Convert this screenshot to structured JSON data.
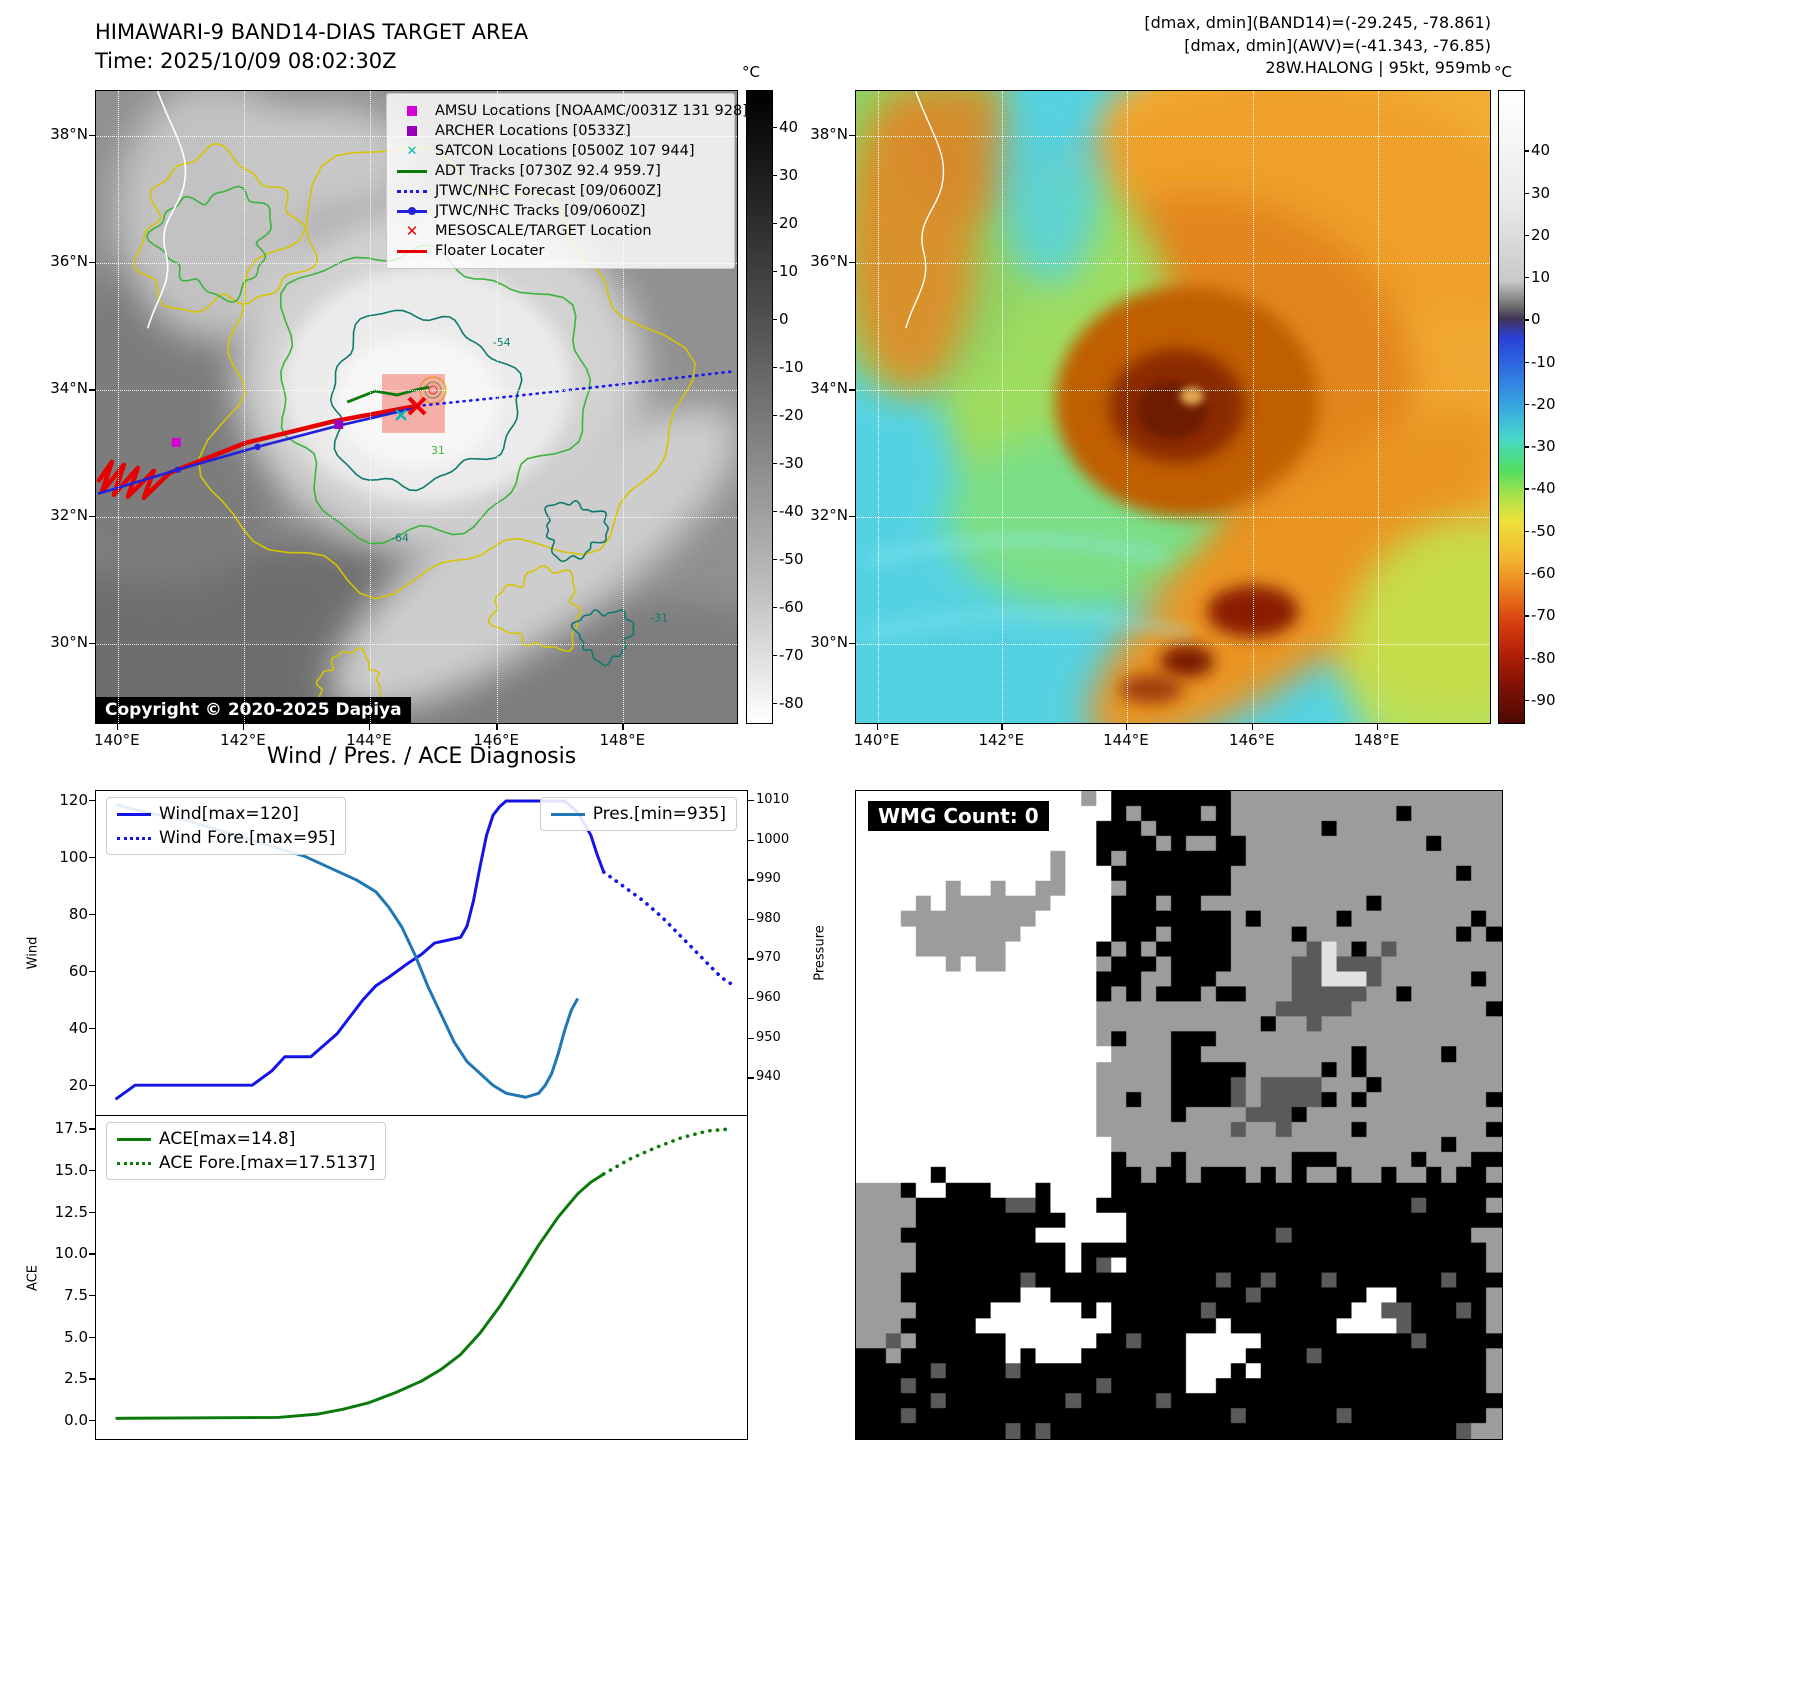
{
  "top_left": {
    "title_line1": "HIMAWARI-9 BAND14-DIAS TARGET AREA",
    "title_line2": "Time: 2025/10/09 08:02:30Z",
    "copyright": "Copyright © 2020-2025 Dapiya",
    "legend": [
      {
        "label": "AMSU Locations [NOAAMC/0031Z 131 928]",
        "marker": "square",
        "color": "#d400d4"
      },
      {
        "label": "ARCHER Locations [0533Z]",
        "marker": "square",
        "color": "#9900bb"
      },
      {
        "label": "SATCON Locations [0500Z 107 944]",
        "marker": "x",
        "color": "#00b8b8"
      },
      {
        "label": "ADT Tracks [0730Z 92.4 959.7]",
        "marker": "line",
        "color": "#0a7a0a"
      },
      {
        "label": "JTWC/NHC Forecast [09/0600Z]",
        "marker": "dotted",
        "color": "#1a1aee"
      },
      {
        "label": "JTWC/NHC Tracks [09/0600Z]",
        "marker": "line-dot",
        "color": "#2222dd"
      },
      {
        "label": "MESOSCALE/TARGET Location",
        "marker": "x-bold",
        "color": "#ee0000"
      },
      {
        "label": "Floater Locater",
        "marker": "line",
        "color": "#e60000"
      }
    ],
    "lat_ticks": [
      "38°N",
      "36°N",
      "34°N",
      "32°N",
      "30°N"
    ],
    "lon_ticks": [
      "140°E",
      "142°E",
      "144°E",
      "146°E",
      "148°E"
    ],
    "colorbar": {
      "unit": "°C",
      "ticks": [
        40,
        30,
        20,
        10,
        0,
        -10,
        -20,
        -30,
        -40,
        -50,
        -60,
        -70,
        -80
      ],
      "gradient": [
        "#000000 0%",
        "#2b2b2b 20%",
        "#555555 38%",
        "#898989 58%",
        "#bcbcbc 78%",
        "#ffffff 100%"
      ]
    }
  },
  "top_right": {
    "title_line1": "[dmax, dmin](BAND14)=(-29.245, -78.861)",
    "title_line2": "[dmax, dmin](AWV)=(-41.343, -76.85)",
    "title_line3": "28W.HALONG | 95kt, 959mb",
    "lat_ticks": [
      "38°N",
      "36°N",
      "34°N",
      "32°N",
      "30°N"
    ],
    "lon_ticks": [
      "140°E",
      "142°E",
      "144°E",
      "146°E",
      "148°E"
    ],
    "colorbar": {
      "unit": "°C",
      "ticks": [
        40,
        30,
        20,
        10,
        0,
        -10,
        -20,
        -30,
        -40,
        -50,
        -60,
        -70,
        -80,
        -90
      ],
      "gradient": [
        "#ffffff 0%",
        "#e9e9e9 18%",
        "#c9c9c9 30%",
        "#6f6f6f 34%",
        "#413355 36%",
        "#2b3fd8 39%",
        "#2e6fe0 44%",
        "#38a8e0 50%",
        "#45d8c8 55%",
        "#52de62 60%",
        "#a8e24a 64%",
        "#eee23c 68%",
        "#f2b52e 74%",
        "#ea7c1c 79%",
        "#d84010 84%",
        "#b22008 89%",
        "#801204 94%",
        "#4c0a02 100%"
      ]
    }
  },
  "bottom_right": {
    "label": "WMG Count: 0"
  },
  "chart_data": [
    {
      "id": "wind-pressure",
      "type": "line",
      "title": "Wind / Pres. / ACE Diagnosis",
      "ylabel_left": "Wind",
      "ylabel_right": "Pressure",
      "ylim_left": [
        9.5,
        123.5
      ],
      "ylim_right": [
        930.5,
        1012.5
      ],
      "yticks_left": [
        20,
        40,
        60,
        80,
        100,
        120
      ],
      "yticks_right": [
        940,
        950,
        960,
        970,
        980,
        990,
        1000,
        1010
      ],
      "xlim": [
        0,
        100
      ],
      "legend_boxes": [
        {
          "pos": "top-left",
          "items": [
            0,
            1
          ]
        },
        {
          "pos": "top-right",
          "items": [
            2
          ]
        }
      ],
      "series": [
        {
          "name": "Wind[max=120]",
          "axis": "left",
          "style": "solid",
          "color": "#1414e6",
          "width": 3,
          "points": [
            [
              3,
              15
            ],
            [
              6,
              20
            ],
            [
              24,
              20
            ],
            [
              27,
              25
            ],
            [
              29,
              30
            ],
            [
              33,
              30
            ],
            [
              35,
              34
            ],
            [
              37,
              38
            ],
            [
              39,
              44
            ],
            [
              41,
              50
            ],
            [
              43,
              55
            ],
            [
              45,
              58
            ],
            [
              48,
              63
            ],
            [
              50,
              66
            ],
            [
              52,
              70
            ],
            [
              54,
              71
            ],
            [
              56,
              72
            ],
            [
              57,
              76
            ],
            [
              58,
              85
            ],
            [
              59,
              97
            ],
            [
              60,
              108
            ],
            [
              61,
              115
            ],
            [
              62,
              118
            ],
            [
              63,
              120
            ],
            [
              72,
              120
            ],
            [
              74,
              116
            ],
            [
              76,
              108
            ],
            [
              77,
              101
            ],
            [
              78,
              95
            ]
          ]
        },
        {
          "name": "Wind Fore.[max=95]",
          "axis": "left",
          "style": "dotted",
          "color": "#1414e6",
          "width": 3,
          "points": [
            [
              78,
              95
            ],
            [
              81,
              90
            ],
            [
              84,
              85
            ],
            [
              87,
              79
            ],
            [
              90,
              72
            ],
            [
              93,
              65
            ],
            [
              96,
              58
            ],
            [
              98,
              55
            ]
          ]
        },
        {
          "name": "Pres.[min=935]",
          "axis": "right",
          "style": "solid",
          "color": "#1f77b4",
          "width": 3,
          "points": [
            [
              3,
              1009
            ],
            [
              8,
              1007
            ],
            [
              14,
              1005
            ],
            [
              20,
              1002
            ],
            [
              26,
              999
            ],
            [
              32,
              996
            ],
            [
              36,
              993
            ],
            [
              40,
              990
            ],
            [
              43,
              987
            ],
            [
              45,
              983
            ],
            [
              47,
              978
            ],
            [
              49,
              971
            ],
            [
              51,
              963
            ],
            [
              53,
              956
            ],
            [
              55,
              949
            ],
            [
              57,
              944
            ],
            [
              59,
              941
            ],
            [
              61,
              938
            ],
            [
              63,
              936
            ],
            [
              66,
              935
            ],
            [
              68,
              936
            ],
            [
              69,
              938
            ],
            [
              70,
              941
            ],
            [
              71,
              946
            ],
            [
              72,
              952
            ],
            [
              73,
              957
            ],
            [
              74,
              960
            ]
          ]
        }
      ]
    },
    {
      "id": "ace",
      "type": "line",
      "ylabel_left": "ACE",
      "ylim_left": [
        -1.2,
        18.3
      ],
      "yticks_left": [
        0.0,
        2.5,
        5.0,
        7.5,
        10.0,
        12.5,
        15.0,
        17.5
      ],
      "ytick_decimals": 1,
      "xlim": [
        0,
        100
      ],
      "legend_boxes": [
        {
          "pos": "top-left",
          "items": [
            0,
            1
          ]
        }
      ],
      "series": [
        {
          "name": "ACE[max=14.8]",
          "axis": "left",
          "style": "solid",
          "color": "#0b7a0b",
          "width": 3,
          "points": [
            [
              3,
              0.05
            ],
            [
              28,
              0.1
            ],
            [
              34,
              0.3
            ],
            [
              38,
              0.6
            ],
            [
              42,
              1.0
            ],
            [
              46,
              1.6
            ],
            [
              50,
              2.3
            ],
            [
              53,
              3.0
            ],
            [
              56,
              3.9
            ],
            [
              59,
              5.2
            ],
            [
              62,
              6.8
            ],
            [
              65,
              8.6
            ],
            [
              68,
              10.5
            ],
            [
              71,
              12.2
            ],
            [
              74,
              13.6
            ],
            [
              76,
              14.3
            ],
            [
              78,
              14.8
            ]
          ]
        },
        {
          "name": "ACE Fore.[max=17.5137]",
          "axis": "left",
          "style": "dotted",
          "color": "#0b7a0b",
          "width": 3,
          "points": [
            [
              78,
              14.8
            ],
            [
              82,
              15.7
            ],
            [
              86,
              16.4
            ],
            [
              90,
              17.0
            ],
            [
              94,
              17.4
            ],
            [
              97,
              17.5
            ]
          ]
        }
      ]
    }
  ]
}
